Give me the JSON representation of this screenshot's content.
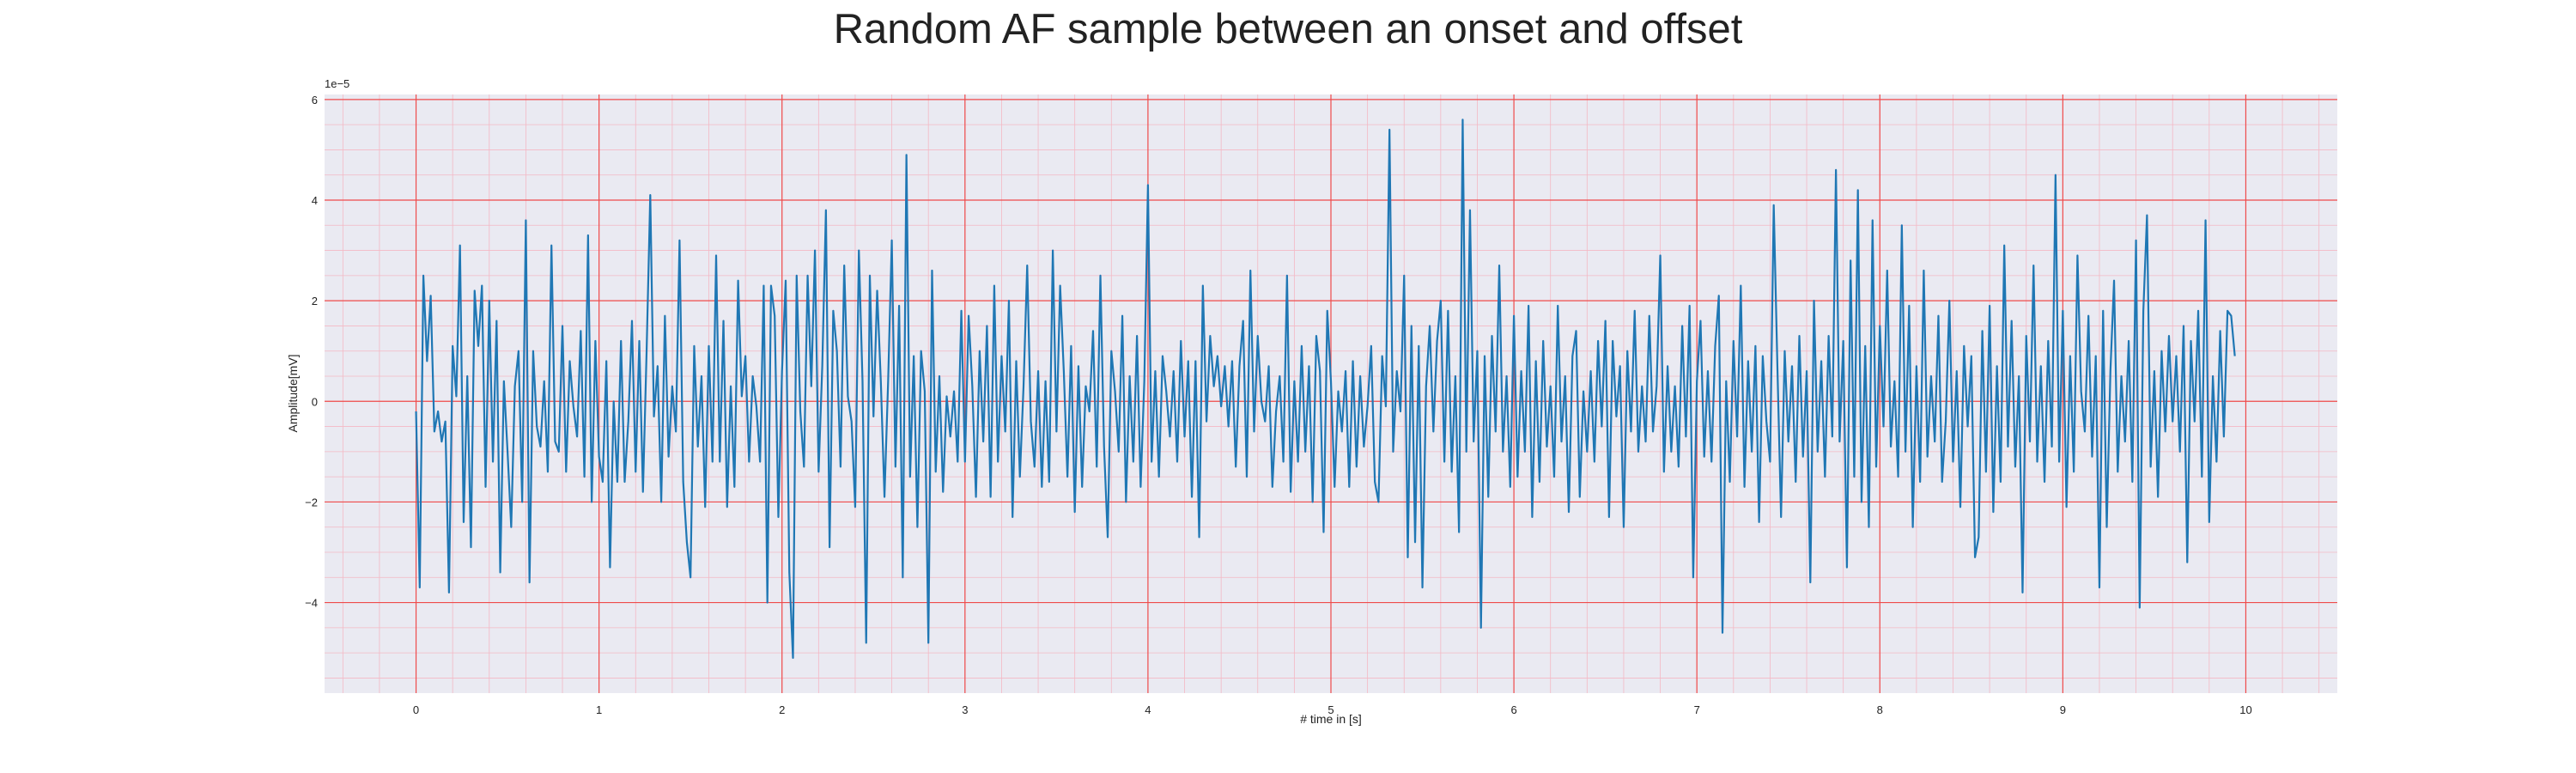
{
  "chart_data": {
    "type": "line",
    "title": "Random AF sample between an onset and offset",
    "xlabel": "# time in [s]",
    "ylabel": "Amplitude[mV]",
    "y_offset_label": "1e−5",
    "xlim": [
      -0.5,
      10.5
    ],
    "ylim": [
      -5.8,
      6.1
    ],
    "x_ticks": [
      0,
      1,
      2,
      3,
      4,
      5,
      6,
      7,
      8,
      9,
      10
    ],
    "y_ticks": [
      -4,
      -2,
      0,
      2,
      4,
      6
    ],
    "y_tick_labels": [
      "−4",
      "−2",
      "0",
      "2",
      "4",
      "6"
    ],
    "grid": true,
    "minor_grid": true,
    "series": [
      {
        "color": "#1f77b4",
        "x_start": 0,
        "x_step": 0.02,
        "values_note": "amplitude in units of 1e-5 mV",
        "values": [
          -0.2,
          -3.7,
          2.5,
          0.8,
          2.1,
          -0.6,
          -0.2,
          -0.8,
          -0.4,
          -3.8,
          1.1,
          0.1,
          3.1,
          -2.4,
          0.5,
          -2.9,
          2.2,
          1.1,
          2.3,
          -1.7,
          2.0,
          -1.2,
          1.6,
          -3.4,
          0.4,
          -1.0,
          -2.5,
          0.3,
          1.0,
          -2.0,
          3.6,
          -3.6,
          1.0,
          -0.5,
          -0.9,
          0.4,
          -1.4,
          3.1,
          -0.8,
          -1.0,
          1.5,
          -1.4,
          0.8,
          -0.1,
          -0.7,
          1.4,
          -1.5,
          3.3,
          -2.0,
          1.2,
          -1.1,
          -1.6,
          0.8,
          -3.3,
          0.0,
          -1.6,
          1.2,
          -1.6,
          -0.4,
          1.6,
          -1.4,
          1.2,
          -1.8,
          1.0,
          4.1,
          -0.3,
          0.7,
          -2.0,
          1.7,
          -1.1,
          0.3,
          -0.6,
          3.2,
          -1.6,
          -2.8,
          -3.5,
          1.1,
          -0.9,
          0.5,
          -2.1,
          1.1,
          -1.2,
          2.9,
          -1.2,
          1.6,
          -2.1,
          0.3,
          -1.7,
          2.4,
          0.1,
          0.9,
          -1.2,
          0.5,
          -0.1,
          -1.2,
          2.3,
          -4.0,
          2.3,
          1.7,
          -2.3,
          0.6,
          2.4,
          -3.4,
          -5.1,
          2.5,
          -0.2,
          -1.3,
          2.5,
          0.3,
          3.0,
          -1.4,
          0.7,
          3.8,
          -2.9,
          1.8,
          1.0,
          -1.3,
          2.7,
          0.1,
          -0.4,
          -2.1,
          3.0,
          0.4,
          -4.8,
          2.5,
          -0.3,
          2.2,
          0.4,
          -1.9,
          0.4,
          3.2,
          -1.3,
          1.9,
          -3.5,
          4.9,
          -1.5,
          0.9,
          -2.5,
          1.0,
          0.2,
          -4.8,
          2.6,
          -1.4,
          0.5,
          -1.8,
          0.1,
          -0.7,
          0.2,
          -1.2,
          1.8,
          -1.2,
          1.7,
          0.3,
          -1.9,
          1.0,
          -0.8,
          1.5,
          -1.9,
          2.3,
          -1.2,
          0.9,
          -0.6,
          2.0,
          -2.3,
          0.8,
          -1.5,
          0.3,
          2.7,
          -0.4,
          -1.3,
          0.6,
          -1.7,
          0.4,
          -1.6,
          3.0,
          -0.6,
          2.3,
          0.6,
          -1.5,
          1.1,
          -2.2,
          0.7,
          -1.7,
          0.3,
          -0.2,
          1.4,
          -1.3,
          2.5,
          -0.9,
          -2.7,
          1.0,
          0.2,
          -1.0,
          1.7,
          -2.0,
          0.5,
          -1.2,
          1.3,
          -1.7,
          0.4,
          4.3,
          -1.2,
          0.6,
          -1.5,
          0.9,
          0.2,
          -0.7,
          0.6,
          -1.2,
          1.2,
          -0.7,
          0.8,
          -1.9,
          0.8,
          -2.7,
          2.3,
          -0.4,
          1.3,
          0.3,
          0.9,
          -0.1,
          0.7,
          -0.5,
          0.8,
          -1.3,
          0.7,
          1.6,
          -1.5,
          2.6,
          -0.6,
          1.3,
          0.0,
          -0.4,
          0.7,
          -1.7,
          -0.2,
          0.5,
          -1.2,
          2.5,
          -1.8,
          0.4,
          -1.2,
          1.1,
          -1.0,
          0.7,
          -2.0,
          1.3,
          0.6,
          -2.6,
          1.8,
          0.4,
          -1.7,
          0.2,
          -0.6,
          0.6,
          -1.7,
          0.8,
          -1.3,
          0.5,
          -0.9,
          -0.1,
          1.1,
          -1.6,
          -2.0,
          0.9,
          -0.1,
          5.4,
          -1.0,
          0.6,
          -0.2,
          2.5,
          -3.1,
          1.5,
          -2.8,
          1.1,
          -3.7,
          0.3,
          1.5,
          -0.6,
          1.2,
          2.0,
          -1.2,
          1.8,
          -1.4,
          0.5,
          -2.6,
          5.6,
          -1.0,
          3.8,
          -0.8,
          1.0,
          -4.5,
          0.9,
          -1.9,
          1.3,
          -0.6,
          2.7,
          -1.0,
          0.5,
          -1.7,
          1.7,
          -1.5,
          0.6,
          -1.0,
          1.9,
          -2.3,
          0.8,
          -1.6,
          1.2,
          -0.9,
          0.3,
          -1.5,
          1.9,
          -0.8,
          0.5,
          -2.2,
          0.9,
          1.4,
          -1.9,
          0.2,
          -1.0,
          0.6,
          -1.2,
          1.2,
          -0.5,
          1.6,
          -2.3,
          1.2,
          -0.3,
          0.7,
          -2.5,
          1.0,
          -0.6,
          1.8,
          -1.0,
          0.3,
          -0.8,
          1.7,
          -0.6,
          0.3,
          2.9,
          -1.4,
          0.7,
          -1.0,
          0.3,
          -1.3,
          1.5,
          -0.7,
          1.9,
          -3.5,
          0.4,
          1.6,
          -1.1,
          0.6,
          -1.2,
          1.1,
          2.1,
          -4.6,
          0.4,
          -1.6,
          1.2,
          -0.7,
          2.3,
          -1.7,
          0.8,
          -1.0,
          1.1,
          -2.4,
          0.9,
          -0.4,
          -1.2,
          3.9,
          0.7,
          -2.3,
          1.0,
          -0.8,
          0.7,
          -1.6,
          1.3,
          -1.1,
          0.6,
          -3.6,
          2.0,
          -1.0,
          0.8,
          -1.5,
          1.3,
          -0.7,
          4.6,
          -0.8,
          1.2,
          -3.3,
          2.8,
          -1.5,
          4.2,
          -2.0,
          1.1,
          -2.5,
          3.6,
          -1.3,
          1.5,
          -0.5,
          2.6,
          -0.9,
          0.4,
          -1.5,
          3.5,
          -1.0,
          1.9,
          -2.5,
          0.7,
          -1.6,
          2.6,
          -1.1,
          0.5,
          -0.8,
          1.7,
          -1.6,
          -0.4,
          2.0,
          -1.2,
          0.6,
          -2.1,
          1.1,
          -0.5,
          0.9,
          -3.1,
          -2.7,
          1.4,
          -1.4,
          1.9,
          -2.2,
          0.7,
          -1.6,
          3.1,
          -0.9,
          1.6,
          -1.3,
          0.5,
          -3.8,
          1.3,
          -0.8,
          2.7,
          -1.2,
          0.7,
          -1.6,
          1.2,
          -0.9,
          4.5,
          -1.2,
          1.8,
          -2.1,
          0.9,
          -1.4,
          2.9,
          0.2,
          -0.6,
          1.7,
          -1.1,
          0.9,
          -3.7,
          1.8,
          -2.5,
          0.6,
          2.4,
          -1.4,
          0.5,
          -0.8,
          1.2,
          -1.6,
          3.2,
          -4.1,
          1.8,
          3.7,
          -1.3,
          0.6,
          -1.9,
          1.0,
          -0.6,
          1.3,
          -0.4,
          0.9,
          -1.0,
          1.5,
          -3.2,
          1.2,
          -0.4,
          1.8,
          -1.5,
          3.6,
          -2.4,
          0.5,
          -1.2,
          1.4,
          -0.7,
          1.8,
          1.7,
          0.9
        ]
      }
    ]
  }
}
